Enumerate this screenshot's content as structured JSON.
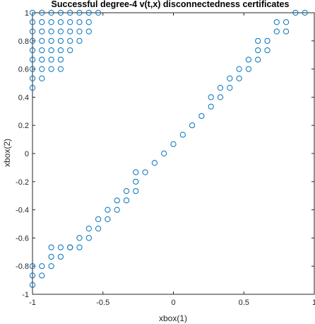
{
  "chart_data": {
    "type": "scatter",
    "title": "Successful degree-4 v(t,x) disconnectedness certificates",
    "xlabel": "xbox(1)",
    "ylabel": "xbox(2)",
    "xlim": [
      -1,
      1
    ],
    "ylim": [
      -1,
      1
    ],
    "xticks": [
      -1,
      -0.5,
      0,
      0.5,
      1
    ],
    "xtick_labels": [
      "-1",
      "-0.5",
      "0",
      "0.5",
      "1"
    ],
    "yticks": [
      -1,
      -0.8,
      -0.6,
      -0.4,
      -0.2,
      0,
      0.2,
      0.4,
      0.6,
      0.8,
      1
    ],
    "ytick_labels": [
      "-1",
      "-0.8",
      "-0.6",
      "-0.4",
      "-0.2",
      "0",
      "0.2",
      "0.4",
      "0.6",
      "0.8",
      "1"
    ],
    "grid": false,
    "marker": "circle",
    "marker_color": "#0072BD",
    "series": [
      {
        "points": [
          [
            -1.0,
            1.0
          ],
          [
            -0.9333,
            1.0
          ],
          [
            -0.8667,
            1.0
          ],
          [
            -0.8,
            1.0
          ],
          [
            -0.7333,
            1.0
          ],
          [
            -0.6667,
            1.0
          ],
          [
            -0.6,
            1.0
          ],
          [
            -0.5333,
            1.0
          ],
          [
            -1.0,
            0.9333
          ],
          [
            -0.9333,
            0.9333
          ],
          [
            -0.8667,
            0.9333
          ],
          [
            -0.8,
            0.9333
          ],
          [
            -0.7333,
            0.9333
          ],
          [
            -0.6667,
            0.9333
          ],
          [
            -0.6,
            0.9333
          ],
          [
            -1.0,
            0.8667
          ],
          [
            -0.9333,
            0.8667
          ],
          [
            -0.8667,
            0.8667
          ],
          [
            -0.8,
            0.8667
          ],
          [
            -0.7333,
            0.8667
          ],
          [
            -0.6667,
            0.8667
          ],
          [
            -0.6,
            0.8667
          ],
          [
            -1.0,
            0.8
          ],
          [
            -0.9333,
            0.8
          ],
          [
            -0.8667,
            0.8
          ],
          [
            -0.8,
            0.8
          ],
          [
            -0.7333,
            0.8
          ],
          [
            -0.6667,
            0.8
          ],
          [
            -1.0,
            0.7333
          ],
          [
            -0.9333,
            0.7333
          ],
          [
            -0.8667,
            0.7333
          ],
          [
            -0.8,
            0.7333
          ],
          [
            -0.7333,
            0.7333
          ],
          [
            -1.0,
            0.6667
          ],
          [
            -0.9333,
            0.6667
          ],
          [
            -0.8667,
            0.6667
          ],
          [
            -0.8,
            0.6667
          ],
          [
            -1.0,
            0.6
          ],
          [
            -0.9333,
            0.6
          ],
          [
            -0.8667,
            0.6
          ],
          [
            -0.8,
            0.6
          ],
          [
            -1.0,
            0.5333
          ],
          [
            -0.9333,
            0.5333
          ],
          [
            -1.0,
            0.4667
          ],
          [
            0.8667,
            1.0
          ],
          [
            0.9333,
            1.0
          ],
          [
            0.7333,
            0.9333
          ],
          [
            0.8,
            0.9333
          ],
          [
            0.7333,
            0.8667
          ],
          [
            0.8,
            0.8667
          ],
          [
            0.6,
            0.8
          ],
          [
            0.6667,
            0.8
          ],
          [
            0.6,
            0.7333
          ],
          [
            0.6667,
            0.7333
          ],
          [
            0.5333,
            0.6667
          ],
          [
            0.6,
            0.6667
          ],
          [
            0.4667,
            0.6
          ],
          [
            0.5333,
            0.6
          ],
          [
            0.4,
            0.5333
          ],
          [
            0.4667,
            0.5333
          ],
          [
            0.3333,
            0.4667
          ],
          [
            0.4,
            0.4667
          ],
          [
            0.2667,
            0.4
          ],
          [
            0.3333,
            0.4
          ],
          [
            0.2667,
            0.3333
          ],
          [
            0.2,
            0.2667
          ],
          [
            0.1333,
            0.2
          ],
          [
            0.0667,
            0.1333
          ],
          [
            0.0,
            0.0667
          ],
          [
            -0.0667,
            0.0
          ],
          [
            -0.1333,
            -0.0667
          ],
          [
            -0.2667,
            -0.1333
          ],
          [
            -0.2,
            -0.1333
          ],
          [
            -0.2667,
            -0.2
          ],
          [
            -0.3333,
            -0.2667
          ],
          [
            -0.2667,
            -0.2667
          ],
          [
            -0.4,
            -0.3333
          ],
          [
            -0.3333,
            -0.3333
          ],
          [
            -0.4667,
            -0.4
          ],
          [
            -0.4,
            -0.4
          ],
          [
            -0.5333,
            -0.4667
          ],
          [
            -0.4667,
            -0.4667
          ],
          [
            -0.6,
            -0.5333
          ],
          [
            -0.5333,
            -0.5333
          ],
          [
            -0.6667,
            -0.6
          ],
          [
            -0.6,
            -0.6
          ],
          [
            -0.7333,
            -0.6667
          ],
          [
            -0.6667,
            -0.6667
          ],
          [
            -0.8667,
            -0.6667
          ],
          [
            -0.8,
            -0.6667
          ],
          [
            -0.7333,
            -0.6667
          ],
          [
            -0.8667,
            -0.7333
          ],
          [
            -0.8,
            -0.7333
          ],
          [
            -1.0,
            -0.8
          ],
          [
            -0.9333,
            -0.8
          ],
          [
            -0.8667,
            -0.8
          ],
          [
            -1.0,
            -0.8667
          ],
          [
            -0.9333,
            -0.8667
          ],
          [
            -1.0,
            -0.9333
          ]
        ]
      }
    ]
  }
}
